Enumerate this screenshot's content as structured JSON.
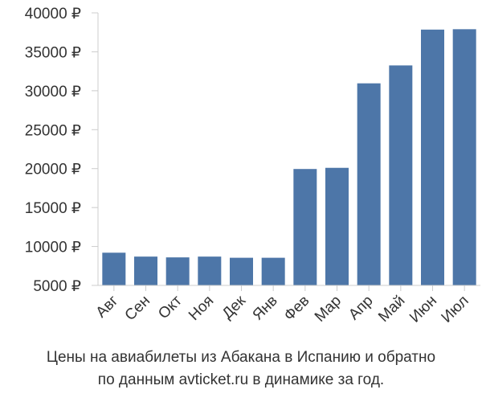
{
  "chart_data": {
    "type": "bar",
    "categories": [
      "Авг",
      "Сен",
      "Окт",
      "Ноя",
      "Дек",
      "Янв",
      "Фев",
      "Мар",
      "Апр",
      "Май",
      "Июн",
      "Июл"
    ],
    "values": [
      9200,
      8700,
      8600,
      8700,
      8550,
      8550,
      19950,
      20100,
      30950,
      33250,
      37850,
      37900
    ],
    "ylim": [
      5000,
      40000
    ],
    "yticks": [
      5000,
      10000,
      15000,
      20000,
      25000,
      30000,
      35000,
      40000
    ],
    "ytick_labels": [
      "5000 ₽",
      "10000 ₽",
      "15000 ₽",
      "20000 ₽",
      "25000 ₽",
      "30000 ₽",
      "35000 ₽",
      "40000 ₽"
    ],
    "grid": false,
    "bar_color": "#4d76a8",
    "caption_line1": "Цены на авиабилеты из Абакана в Испанию и обратно",
    "caption_line2": "по данным avticket.ru в динамике за год."
  }
}
